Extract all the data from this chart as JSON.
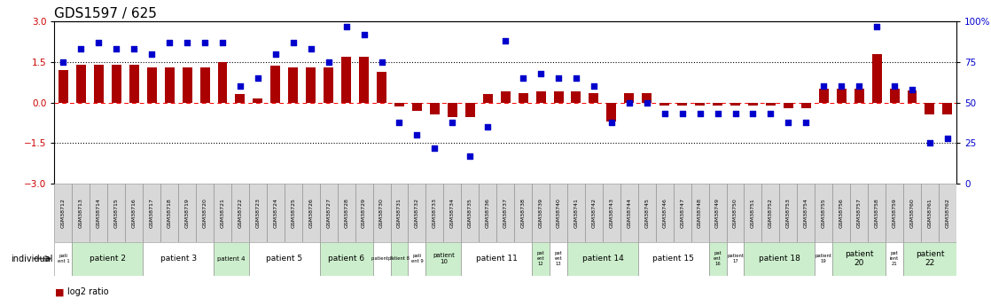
{
  "title": "GDS1597 / 625",
  "samples": [
    "GSM38712",
    "GSM38713",
    "GSM38714",
    "GSM38715",
    "GSM38716",
    "GSM38717",
    "GSM38718",
    "GSM38719",
    "GSM38720",
    "GSM38721",
    "GSM38722",
    "GSM38723",
    "GSM38724",
    "GSM38725",
    "GSM38726",
    "GSM38727",
    "GSM38728",
    "GSM38729",
    "GSM38730",
    "GSM38731",
    "GSM38732",
    "GSM38733",
    "GSM38734",
    "GSM38735",
    "GSM38736",
    "GSM38737",
    "GSM38738",
    "GSM38739",
    "GSM38740",
    "GSM38741",
    "GSM38742",
    "GSM38743",
    "GSM38744",
    "GSM38745",
    "GSM38746",
    "GSM38747",
    "GSM38748",
    "GSM38749",
    "GSM38750",
    "GSM38751",
    "GSM38752",
    "GSM38753",
    "GSM38754",
    "GSM38755",
    "GSM38756",
    "GSM38757",
    "GSM38758",
    "GSM38759",
    "GSM38760",
    "GSM38761",
    "GSM38762"
  ],
  "log2_ratio": [
    1.2,
    1.4,
    1.4,
    1.4,
    1.4,
    1.3,
    1.3,
    1.3,
    1.3,
    1.5,
    0.3,
    0.15,
    1.35,
    1.3,
    1.3,
    1.3,
    1.7,
    1.7,
    1.15,
    -0.15,
    -0.3,
    -0.45,
    -0.55,
    -0.55,
    0.3,
    0.4,
    0.35,
    0.4,
    0.4,
    0.4,
    0.35,
    -0.7,
    0.35,
    0.35,
    -0.1,
    -0.1,
    -0.1,
    -0.1,
    -0.1,
    -0.1,
    -0.1,
    -0.2,
    -0.2,
    0.5,
    0.5,
    0.5,
    1.8,
    0.5,
    0.45,
    -0.45,
    -0.45
  ],
  "percentile_rank": [
    75,
    83,
    87,
    83,
    83,
    80,
    87,
    87,
    87,
    87,
    60,
    65,
    80,
    87,
    83,
    75,
    97,
    92,
    75,
    38,
    30,
    22,
    38,
    17,
    35,
    88,
    65,
    68,
    65,
    65,
    60,
    38,
    50,
    50,
    43,
    43,
    43,
    43,
    43,
    43,
    43,
    38,
    38,
    60,
    60,
    60,
    97,
    60,
    58,
    25,
    28
  ],
  "patients": [
    {
      "label": "pati\nent 1",
      "start": 0,
      "end": 1,
      "color": "#ffffff"
    },
    {
      "label": "patient 2",
      "start": 1,
      "end": 5,
      "color": "#cceecc"
    },
    {
      "label": "patient 3",
      "start": 5,
      "end": 9,
      "color": "#ffffff"
    },
    {
      "label": "patient 4",
      "start": 9,
      "end": 11,
      "color": "#cceecc"
    },
    {
      "label": "patient 5",
      "start": 11,
      "end": 15,
      "color": "#ffffff"
    },
    {
      "label": "patient 6",
      "start": 15,
      "end": 18,
      "color": "#cceecc"
    },
    {
      "label": "patient 7",
      "start": 18,
      "end": 19,
      "color": "#ffffff"
    },
    {
      "label": "patient 8",
      "start": 19,
      "end": 20,
      "color": "#cceecc"
    },
    {
      "label": "pati\nent 9",
      "start": 20,
      "end": 21,
      "color": "#ffffff"
    },
    {
      "label": "patient\n10",
      "start": 21,
      "end": 23,
      "color": "#cceecc"
    },
    {
      "label": "patient 11",
      "start": 23,
      "end": 27,
      "color": "#ffffff"
    },
    {
      "label": "pat\nent\n12",
      "start": 27,
      "end": 28,
      "color": "#cceecc"
    },
    {
      "label": "pat\nent\n13",
      "start": 28,
      "end": 29,
      "color": "#ffffff"
    },
    {
      "label": "patient 14",
      "start": 29,
      "end": 33,
      "color": "#cceecc"
    },
    {
      "label": "patient 15",
      "start": 33,
      "end": 37,
      "color": "#ffffff"
    },
    {
      "label": "pat\nent\n16",
      "start": 37,
      "end": 38,
      "color": "#cceecc"
    },
    {
      "label": "patient\n17",
      "start": 38,
      "end": 39,
      "color": "#ffffff"
    },
    {
      "label": "patient 18",
      "start": 39,
      "end": 43,
      "color": "#cceecc"
    },
    {
      "label": "patient\n19",
      "start": 43,
      "end": 44,
      "color": "#ffffff"
    },
    {
      "label": "patient\n20",
      "start": 44,
      "end": 47,
      "color": "#cceecc"
    },
    {
      "label": "pat\nient\n21",
      "start": 47,
      "end": 48,
      "color": "#ffffff"
    },
    {
      "label": "patient\n22",
      "start": 48,
      "end": 51,
      "color": "#cceecc"
    }
  ],
  "bar_color": "#AA0000",
  "dot_color": "#0000CC",
  "ylim": [
    -3,
    3
  ],
  "yticks": [
    -3,
    -1.5,
    0,
    1.5,
    3
  ],
  "right_ylim": [
    0,
    100
  ],
  "right_yticks": [
    0,
    25,
    50,
    75,
    100
  ],
  "hline_values": [
    -1.5,
    1.5
  ],
  "zero_line": 0,
  "title_fontsize": 11,
  "left_tick_color": "#CC0000",
  "right_tick_color": "#0000CC",
  "legend_log2_color": "#AA0000",
  "legend_pct_color": "#0000CC",
  "bg_color": "#ffffff",
  "gsm_box_color": "#d8d8d8"
}
